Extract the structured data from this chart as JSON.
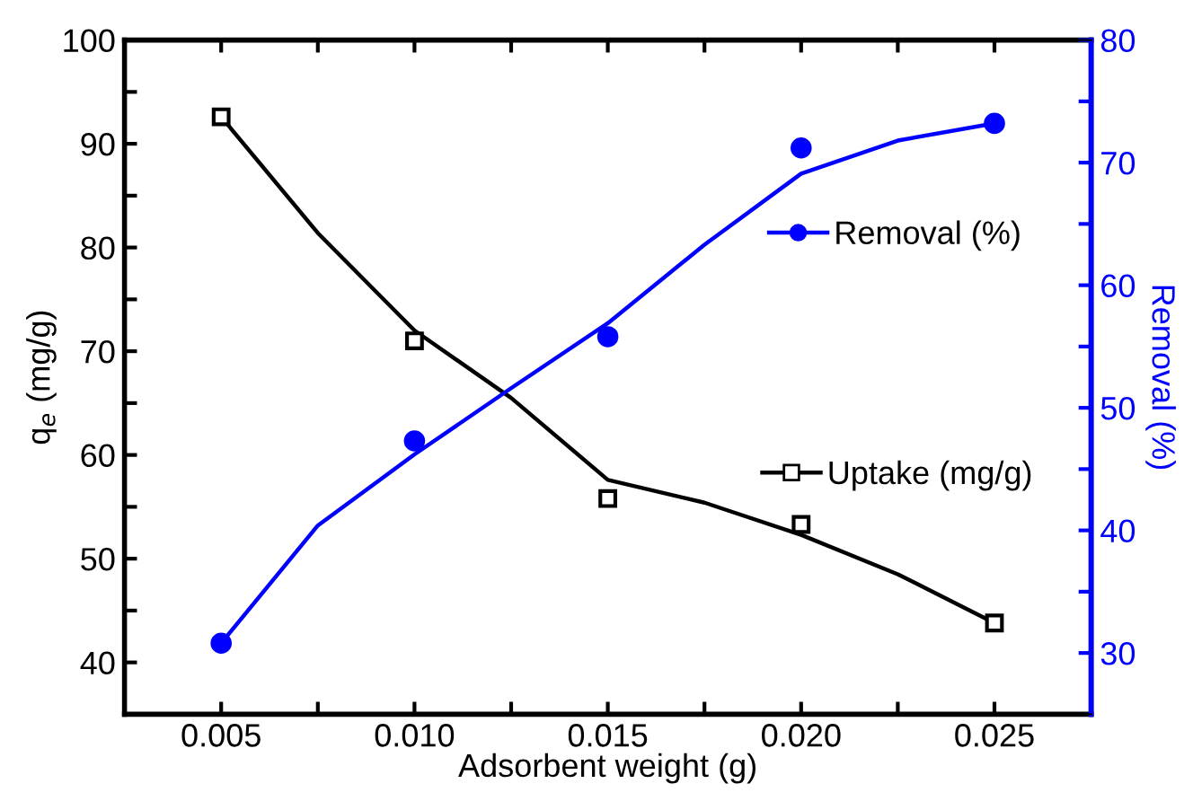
{
  "chart_data": {
    "type": "scatter",
    "xlabel": "Adsorbent weight (g)",
    "ylabel": "q$_{e}$ (mg/g)",
    "y2label": "Removal (%)",
    "xlim": [
      0.0025,
      0.0275
    ],
    "xticks": [
      {
        "value": 0.0025,
        "label": null
      },
      {
        "value": 0.005,
        "label": "0.005"
      },
      {
        "value": 0.0075,
        "label": null
      },
      {
        "value": 0.01,
        "label": "0.010"
      },
      {
        "value": 0.0125,
        "label": null
      },
      {
        "value": 0.015,
        "label": "0.015"
      },
      {
        "value": 0.0175,
        "label": null
      },
      {
        "value": 0.02,
        "label": "0.020"
      },
      {
        "value": 0.0225,
        "label": null
      },
      {
        "value": 0.025,
        "label": "0.025"
      },
      {
        "value": 0.0275,
        "label": null
      }
    ],
    "ylim": [
      35,
      100
    ],
    "yticks": [
      40,
      {
        "value": 45,
        "label": null
      },
      50,
      {
        "value": 55,
        "label": null
      },
      60,
      {
        "value": 65,
        "label": null
      },
      70,
      {
        "value": 75,
        "label": null
      },
      80,
      {
        "value": 85,
        "label": null
      },
      90,
      {
        "value": 95,
        "label": null
      },
      100
    ],
    "y2lim": [
      25,
      80
    ],
    "y2ticks": [
      30,
      {
        "value": 35,
        "label": null
      },
      40,
      {
        "value": 45,
        "label": null
      },
      50,
      {
        "value": 55,
        "label": null
      },
      60,
      {
        "value": 65,
        "label": null
      },
      70,
      {
        "value": 75,
        "label": null
      },
      80
    ],
    "grid": false,
    "legend": "right",
    "series": [
      {
        "name": "Uptake (mg/g)",
        "marker": "square",
        "color": "#000000",
        "x": [
          0.005,
          0.01,
          0.015,
          0.02,
          0.025
        ],
        "values": [
          92.6,
          71.0,
          55.8,
          53.3,
          43.8
        ]
      },
      {
        "type": "line",
        "marker": "none",
        "color": "#000000",
        "x": [
          0.005,
          0.0075,
          0.01,
          0.0125,
          0.015,
          0.0175,
          0.02,
          0.0225,
          0.025
        ],
        "values": [
          92.6,
          81.4,
          72.0,
          65.5,
          57.6,
          55.4,
          52.3,
          48.5,
          43.8
        ]
      },
      {
        "name": "Removal (%)",
        "axis": "y2",
        "marker": "circle",
        "color": "#0000ff",
        "x": [
          0.005,
          0.01,
          0.015,
          0.02,
          0.025
        ],
        "values": [
          30.8,
          47.3,
          55.8,
          71.2,
          73.2
        ]
      },
      {
        "type": "line",
        "axis": "y2",
        "marker": "none",
        "color": "#0000ff",
        "x": [
          0.005,
          0.0075,
          0.01,
          0.0125,
          0.015,
          0.0175,
          0.02,
          0.0225,
          0.025
        ],
        "values": [
          30.8,
          40.4,
          46.2,
          51.6,
          56.9,
          63.3,
          69.1,
          71.8,
          73.2
        ]
      }
    ]
  }
}
